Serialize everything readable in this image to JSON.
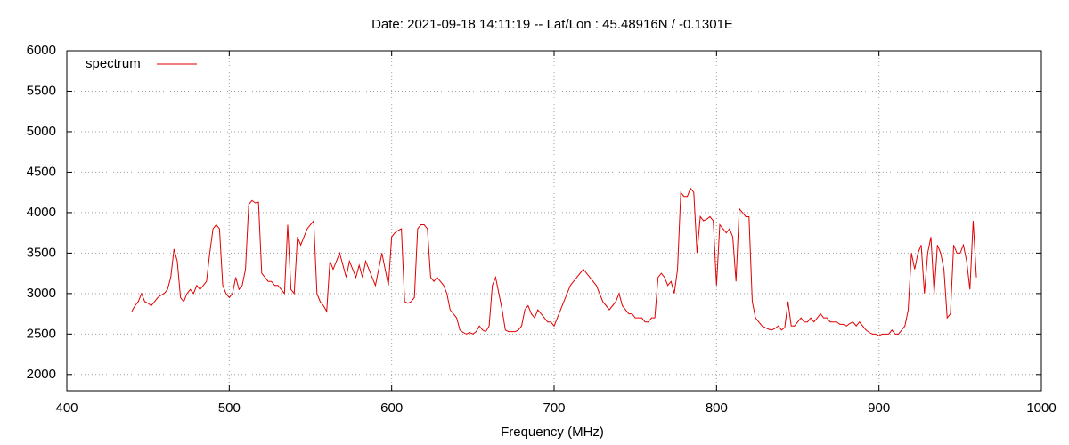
{
  "chart_data": {
    "type": "line",
    "title": "Date: 2021-09-18 14:11:19  --  Lat/Lon : 45.48916N / -0.1301E",
    "x_label": "Frequency (MHz)",
    "xlim": [
      400,
      1000
    ],
    "xticks": [
      400,
      500,
      600,
      700,
      800,
      900,
      1000
    ],
    "ylim": [
      1800,
      6000
    ],
    "yticks": [
      2000,
      2500,
      3000,
      3500,
      4000,
      4500,
      5000,
      5500,
      6000
    ],
    "grid": true,
    "legend": "top-left",
    "x": [
      440,
      442,
      444,
      446,
      448,
      450,
      452,
      454,
      456,
      458,
      460,
      462,
      464,
      466,
      468,
      470,
      472,
      474,
      476,
      478,
      480,
      482,
      484,
      486,
      488,
      490,
      492,
      494,
      496,
      498,
      500,
      502,
      504,
      506,
      508,
      510,
      512,
      514,
      516,
      518,
      520,
      522,
      524,
      526,
      528,
      530,
      532,
      534,
      536,
      538,
      540,
      542,
      544,
      546,
      548,
      550,
      552,
      554,
      556,
      558,
      560,
      562,
      564,
      566,
      568,
      570,
      572,
      574,
      576,
      578,
      580,
      582,
      584,
      586,
      588,
      590,
      592,
      594,
      596,
      598,
      600,
      602,
      604,
      606,
      608,
      610,
      612,
      614,
      616,
      618,
      620,
      622,
      624,
      626,
      628,
      630,
      632,
      634,
      636,
      638,
      640,
      642,
      644,
      646,
      648,
      650,
      652,
      654,
      656,
      658,
      660,
      662,
      664,
      666,
      668,
      670,
      672,
      674,
      676,
      678,
      680,
      682,
      684,
      686,
      688,
      690,
      692,
      694,
      696,
      698,
      700,
      702,
      704,
      706,
      708,
      710,
      712,
      714,
      716,
      718,
      720,
      722,
      724,
      726,
      728,
      730,
      732,
      734,
      736,
      738,
      740,
      742,
      744,
      746,
      748,
      750,
      752,
      754,
      756,
      758,
      760,
      762,
      764,
      766,
      768,
      770,
      772,
      774,
      776,
      778,
      780,
      782,
      784,
      786,
      788,
      790,
      792,
      794,
      796,
      798,
      800,
      802,
      804,
      806,
      808,
      810,
      812,
      814,
      816,
      818,
      820,
      822,
      824,
      826,
      828,
      830,
      832,
      834,
      836,
      838,
      840,
      842,
      844,
      846,
      848,
      850,
      852,
      854,
      856,
      858,
      860,
      862,
      864,
      866,
      868,
      870,
      872,
      874,
      876,
      878,
      880,
      882,
      884,
      886,
      888,
      890,
      892,
      894,
      896,
      898,
      900,
      902,
      904,
      906,
      908,
      910,
      912,
      914,
      916,
      918,
      920,
      922,
      924,
      926,
      928,
      930,
      932,
      934,
      936,
      938,
      940,
      942,
      944,
      946,
      948,
      950,
      952,
      954,
      956,
      958,
      960
    ],
    "series": [
      {
        "name": "spectrum",
        "color": "#e00000",
        "values": [
          2780,
          2850,
          2900,
          3000,
          2900,
          2880,
          2850,
          2900,
          2950,
          2980,
          3000,
          3050,
          3200,
          3550,
          3400,
          2950,
          2900,
          3000,
          3050,
          3000,
          3100,
          3050,
          3100,
          3150,
          3500,
          3800,
          3850,
          3800,
          3100,
          3000,
          2950,
          3000,
          3200,
          3050,
          3100,
          3300,
          4100,
          4150,
          4120,
          4130,
          3250,
          3200,
          3150,
          3150,
          3100,
          3100,
          3050,
          3000,
          3850,
          3050,
          3000,
          3700,
          3600,
          3700,
          3800,
          3850,
          3900,
          3000,
          2900,
          2850,
          2780,
          3400,
          3300,
          3400,
          3500,
          3350,
          3200,
          3400,
          3300,
          3200,
          3350,
          3200,
          3400,
          3300,
          3200,
          3100,
          3300,
          3500,
          3300,
          3100,
          3700,
          3750,
          3780,
          3800,
          2900,
          2880,
          2900,
          2950,
          3800,
          3850,
          3850,
          3800,
          3200,
          3150,
          3200,
          3150,
          3100,
          3000,
          2800,
          2750,
          2700,
          2550,
          2520,
          2500,
          2520,
          2500,
          2530,
          2600,
          2550,
          2530,
          2600,
          3100,
          3200,
          3000,
          2800,
          2550,
          2530,
          2530,
          2530,
          2550,
          2600,
          2800,
          2850,
          2750,
          2700,
          2800,
          2750,
          2700,
          2650,
          2650,
          2600,
          2700,
          2800,
          2900,
          3000,
          3100,
          3150,
          3200,
          3250,
          3300,
          3250,
          3200,
          3150,
          3100,
          3000,
          2900,
          2850,
          2800,
          2850,
          2900,
          3000,
          2850,
          2800,
          2750,
          2750,
          2700,
          2700,
          2700,
          2650,
          2650,
          2700,
          2700,
          3200,
          3250,
          3200,
          3100,
          3150,
          3000,
          3300,
          4250,
          4200,
          4200,
          4300,
          4250,
          3500,
          3950,
          3900,
          3920,
          3950,
          3900,
          3100,
          3850,
          3800,
          3750,
          3800,
          3700,
          3150,
          4050,
          4000,
          3950,
          3950,
          2900,
          2700,
          2650,
          2600,
          2580,
          2560,
          2550,
          2570,
          2600,
          2550,
          2580,
          2900,
          2600,
          2600,
          2650,
          2700,
          2650,
          2650,
          2700,
          2650,
          2700,
          2750,
          2700,
          2700,
          2650,
          2650,
          2650,
          2620,
          2620,
          2600,
          2630,
          2650,
          2600,
          2650,
          2600,
          2550,
          2520,
          2500,
          2500,
          2480,
          2500,
          2500,
          2500,
          2550,
          2500,
          2500,
          2550,
          2600,
          2800,
          3500,
          3300,
          3500,
          3600,
          3000,
          3500,
          3700,
          3000,
          3600,
          3500,
          3300,
          2700,
          2750,
          3600,
          3500,
          3500,
          3600,
          3400,
          3050,
          3900,
          3200
        ]
      }
    ]
  }
}
